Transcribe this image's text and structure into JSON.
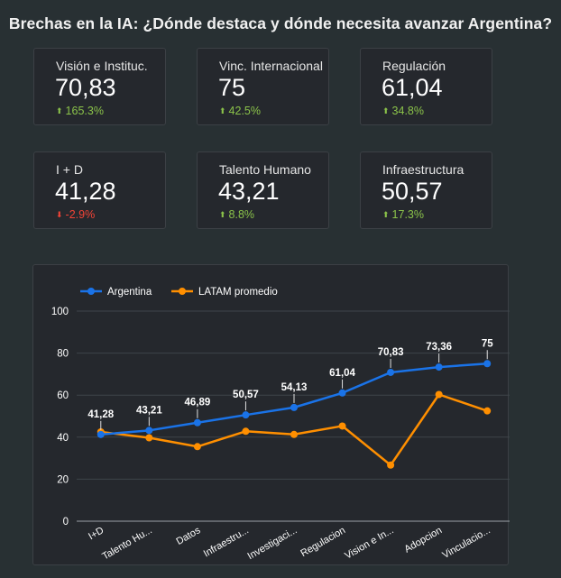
{
  "title": "Brechas en la IA: ¿Dónde destaca y dónde necesita avanzar Argentina?",
  "cards": [
    {
      "label": "Visión e Instituc.",
      "value": "70,83",
      "delta": "165.3%",
      "direction": "up"
    },
    {
      "label": "Vinc. Internacional",
      "value": "75",
      "delta": "42.5%",
      "direction": "up"
    },
    {
      "label": "Regulación",
      "value": "61,04",
      "delta": "34.8%",
      "direction": "up"
    },
    {
      "label": "I + D",
      "value": "41,28",
      "delta": "-2.9%",
      "direction": "down"
    },
    {
      "label": "Talento Humano",
      "value": "43,21",
      "delta": "8.8%",
      "direction": "up"
    },
    {
      "label": "Infraestructura",
      "value": "50,57",
      "delta": "17.3%",
      "direction": "up"
    }
  ],
  "colors": {
    "up": "#8bc34a",
    "down": "#f44336",
    "argentina": "#1a73e8",
    "latam": "#ff8f00"
  },
  "chart_data": {
    "type": "line",
    "categories": [
      "I+D",
      "Talento Hu...",
      "Datos",
      "Infraestru...",
      "Investigaci...",
      "Regulacion",
      "Vision e In...",
      "Adopcion",
      "Vinculacio..."
    ],
    "series": [
      {
        "name": "Argentina",
        "color": "#1a73e8",
        "values": [
          41.28,
          43.21,
          46.89,
          50.57,
          54.13,
          61.04,
          70.83,
          73.36,
          75
        ],
        "labels": [
          "41,28",
          "43,21",
          "46,89",
          "50,57",
          "54,13",
          "61,04",
          "70,83",
          "73,36",
          "75"
        ]
      },
      {
        "name": "LATAM promedio",
        "color": "#ff8f00",
        "values": [
          42.5,
          39.7,
          35.5,
          42.8,
          41.3,
          45.3,
          26.7,
          60.3,
          52.5
        ]
      }
    ],
    "yticks": [
      0,
      20,
      40,
      60,
      80,
      100
    ],
    "ylim": [
      0,
      100
    ],
    "grid": true,
    "legend": "top-left"
  }
}
